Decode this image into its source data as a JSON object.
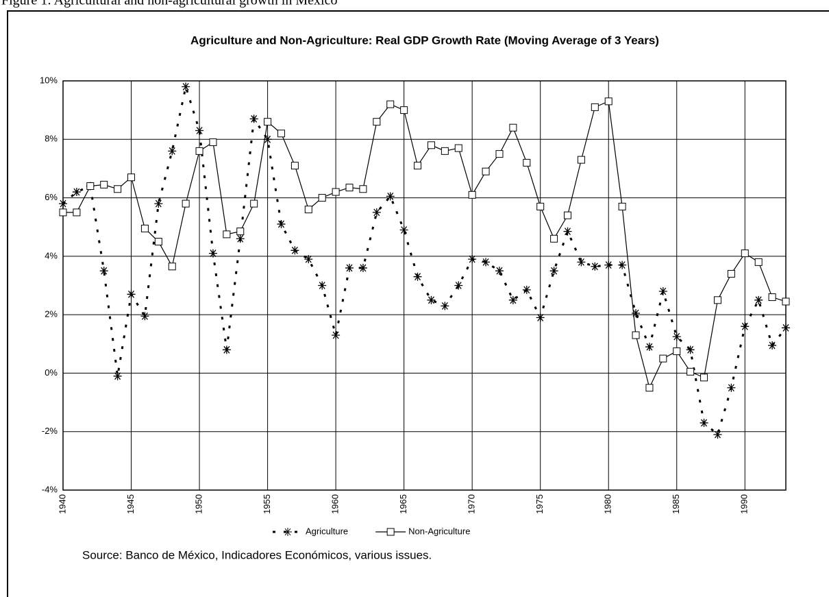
{
  "caption": "Figure 1: Agricultural and non-agricultural growth in Mexico",
  "source": "Source: Banco de México, Indicadores Económicos, various issues.",
  "chart_data": {
    "type": "line",
    "title": "Agriculture and Non-Agriculture: Real GDP Growth Rate (Moving Average of 3 Years)",
    "x": [
      1940,
      1941,
      1942,
      1943,
      1944,
      1945,
      1946,
      1947,
      1948,
      1949,
      1950,
      1951,
      1952,
      1953,
      1954,
      1955,
      1956,
      1957,
      1958,
      1959,
      1960,
      1961,
      1962,
      1963,
      1964,
      1965,
      1966,
      1967,
      1968,
      1969,
      1970,
      1971,
      1972,
      1973,
      1974,
      1975,
      1976,
      1977,
      1978,
      1979,
      1980,
      1981,
      1982,
      1983,
      1984,
      1985,
      1986,
      1987,
      1988,
      1989,
      1990,
      1991,
      1992,
      1993
    ],
    "series": [
      {
        "name": "Agriculture",
        "color": "#000000",
        "marker": "asterisk",
        "linestyle": "dashed",
        "values": [
          5.8,
          6.2,
          6.4,
          3.5,
          -0.1,
          2.7,
          1.95,
          5.8,
          7.6,
          9.8,
          8.3,
          4.1,
          0.8,
          4.6,
          8.7,
          8.0,
          5.1,
          4.2,
          3.9,
          3.0,
          1.3,
          3.6,
          3.6,
          5.5,
          6.05,
          4.9,
          3.3,
          2.5,
          2.3,
          3.0,
          3.9,
          3.8,
          3.5,
          2.5,
          2.85,
          1.9,
          3.5,
          4.85,
          3.8,
          3.65,
          3.7,
          3.7,
          2.05,
          0.9,
          2.8,
          1.25,
          0.8,
          -1.7,
          -2.1,
          -0.5,
          1.6,
          2.5,
          0.95,
          1.55
        ]
      },
      {
        "name": "Non-Agriculture",
        "color": "#000000",
        "marker": "square",
        "linestyle": "solid",
        "values": [
          5.5,
          5.5,
          6.4,
          6.45,
          6.3,
          6.7,
          4.95,
          4.5,
          3.65,
          5.8,
          7.6,
          7.9,
          4.75,
          4.85,
          5.8,
          8.6,
          8.2,
          7.1,
          5.6,
          6.0,
          6.2,
          6.35,
          6.3,
          8.6,
          9.2,
          9.0,
          7.1,
          7.8,
          7.6,
          7.7,
          6.1,
          6.9,
          7.5,
          8.4,
          7.2,
          5.7,
          4.6,
          5.4,
          7.3,
          9.1,
          9.3,
          5.7,
          1.3,
          -0.5,
          0.5,
          0.75,
          0.05,
          -0.15,
          2.5,
          3.4,
          4.1,
          3.8,
          2.6,
          2.45
        ]
      }
    ],
    "xlim": [
      1940,
      1993
    ],
    "xticks": [
      1940,
      1945,
      1950,
      1955,
      1960,
      1965,
      1970,
      1975,
      1980,
      1985,
      1990
    ],
    "ylim": [
      -4,
      10
    ],
    "yticks": [
      {
        "value": -4,
        "label": "-4%"
      },
      {
        "value": -2,
        "label": "-2%"
      },
      {
        "value": 0,
        "label": "0%"
      },
      {
        "value": 2,
        "label": "2%"
      },
      {
        "value": 4,
        "label": "4%"
      },
      {
        "value": 6,
        "label": "6%"
      },
      {
        "value": 8,
        "label": "8%"
      },
      {
        "value": 10,
        "label": "10%"
      }
    ],
    "grid": true,
    "legend": "bottom"
  }
}
